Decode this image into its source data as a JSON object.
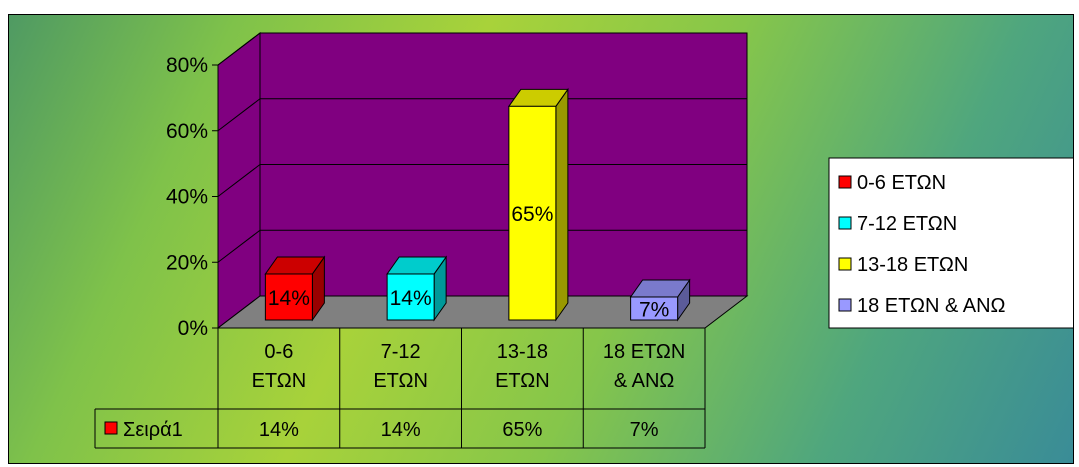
{
  "chart_data": {
    "type": "bar",
    "title": "",
    "xlabel": "",
    "ylabel": "",
    "categories": [
      "0-6 ΕΤΩΝ",
      "7-12 ΕΤΩΝ",
      "13-18 ΕΤΩΝ",
      "18 ΕΤΩΝ & ΑΝΩ"
    ],
    "category_lines": [
      [
        "0-6",
        "ΕΤΩΝ"
      ],
      [
        "7-12",
        "ΕΤΩΝ"
      ],
      [
        "13-18",
        "ΕΤΩΝ"
      ],
      [
        "18 ΕΤΩΝ",
        "& ΑΝΩ"
      ]
    ],
    "values": [
      14,
      14,
      65,
      7
    ],
    "data_labels": [
      "14%",
      "14%",
      "65%",
      "7%"
    ],
    "ylim": [
      0,
      80
    ],
    "yticks": [
      "0%",
      "20%",
      "40%",
      "60%",
      "80%"
    ],
    "grid": true,
    "legend_position": "right",
    "legend": [
      "0-6 ΕΤΩΝ",
      "7-12 ΕΤΩΝ",
      "13-18 ΕΤΩΝ",
      "18 ΕΤΩΝ & ΑΝΩ"
    ],
    "bar_colors": [
      "#ff0000",
      "#00ffff",
      "#ffff00",
      "#9999ff"
    ],
    "bar_side_colors": [
      "#990000",
      "#009999",
      "#999900",
      "#5b5b99"
    ],
    "bar_top_colors": [
      "#cc0000",
      "#00cccc",
      "#cccc00",
      "#7a7acc"
    ],
    "back_wall_color": "#800080",
    "floor_color": "#808080",
    "data_table": {
      "series_name": "Σειρά1",
      "series_color": "#ff0000",
      "cells": [
        "14%",
        "14%",
        "65%",
        "7%"
      ]
    }
  }
}
